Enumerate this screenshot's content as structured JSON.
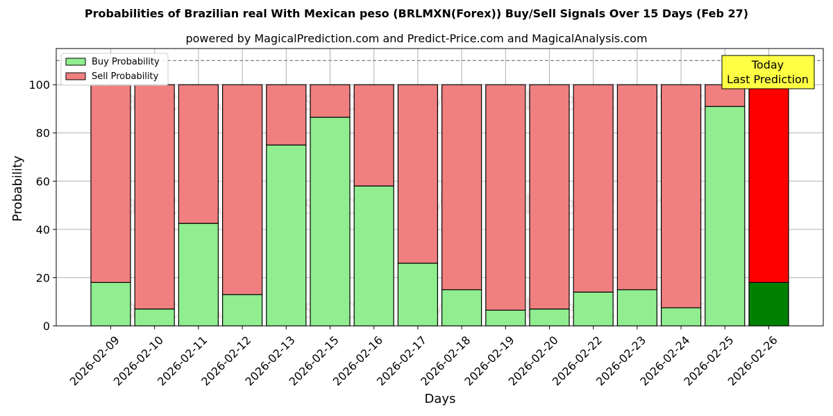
{
  "chart_data": {
    "type": "bar",
    "stacked": true,
    "title": "Probabilities of Brazilian real With Mexican peso (BRLMXN(Forex)) Buy/Sell Signals Over 15 Days (Feb 27)",
    "subtitle": "powered by MagicalPrediction.com and Predict-Price.com and MagicalAnalysis.com",
    "xlabel": "Days",
    "ylabel": "Probability",
    "ylim": [
      0,
      115
    ],
    "yticks": [
      0,
      20,
      40,
      60,
      80,
      100
    ],
    "grid": true,
    "legend_position": "top-left",
    "categories": [
      "2026-02-09",
      "2026-02-10",
      "2026-02-11",
      "2026-02-12",
      "2026-02-13",
      "2026-02-15",
      "2026-02-16",
      "2026-02-17",
      "2026-02-18",
      "2026-02-19",
      "2026-02-20",
      "2026-02-22",
      "2026-02-23",
      "2026-02-24",
      "2026-02-25",
      "2026-02-26"
    ],
    "series": [
      {
        "name": "Buy Probability",
        "color": "#90ee90",
        "highlight_color": "#008000",
        "values": [
          18,
          7,
          42.5,
          13,
          75,
          86.5,
          58,
          26,
          15,
          6.5,
          7,
          14,
          15,
          7.5,
          91,
          18
        ]
      },
      {
        "name": "Sell Probability",
        "color": "#f08080",
        "highlight_color": "#ff0000",
        "values": [
          82,
          93,
          57.5,
          87,
          25,
          13.5,
          42,
          74,
          85,
          93.5,
          93,
          86,
          85,
          92.5,
          9,
          82
        ]
      }
    ],
    "reference_line": 110,
    "annotation": {
      "line1": "Today",
      "line2": "Last Prediction",
      "background": "#ffff44"
    },
    "watermarks": [
      "MagicalAnalysis.com",
      "MagicalPrediction.com"
    ]
  }
}
